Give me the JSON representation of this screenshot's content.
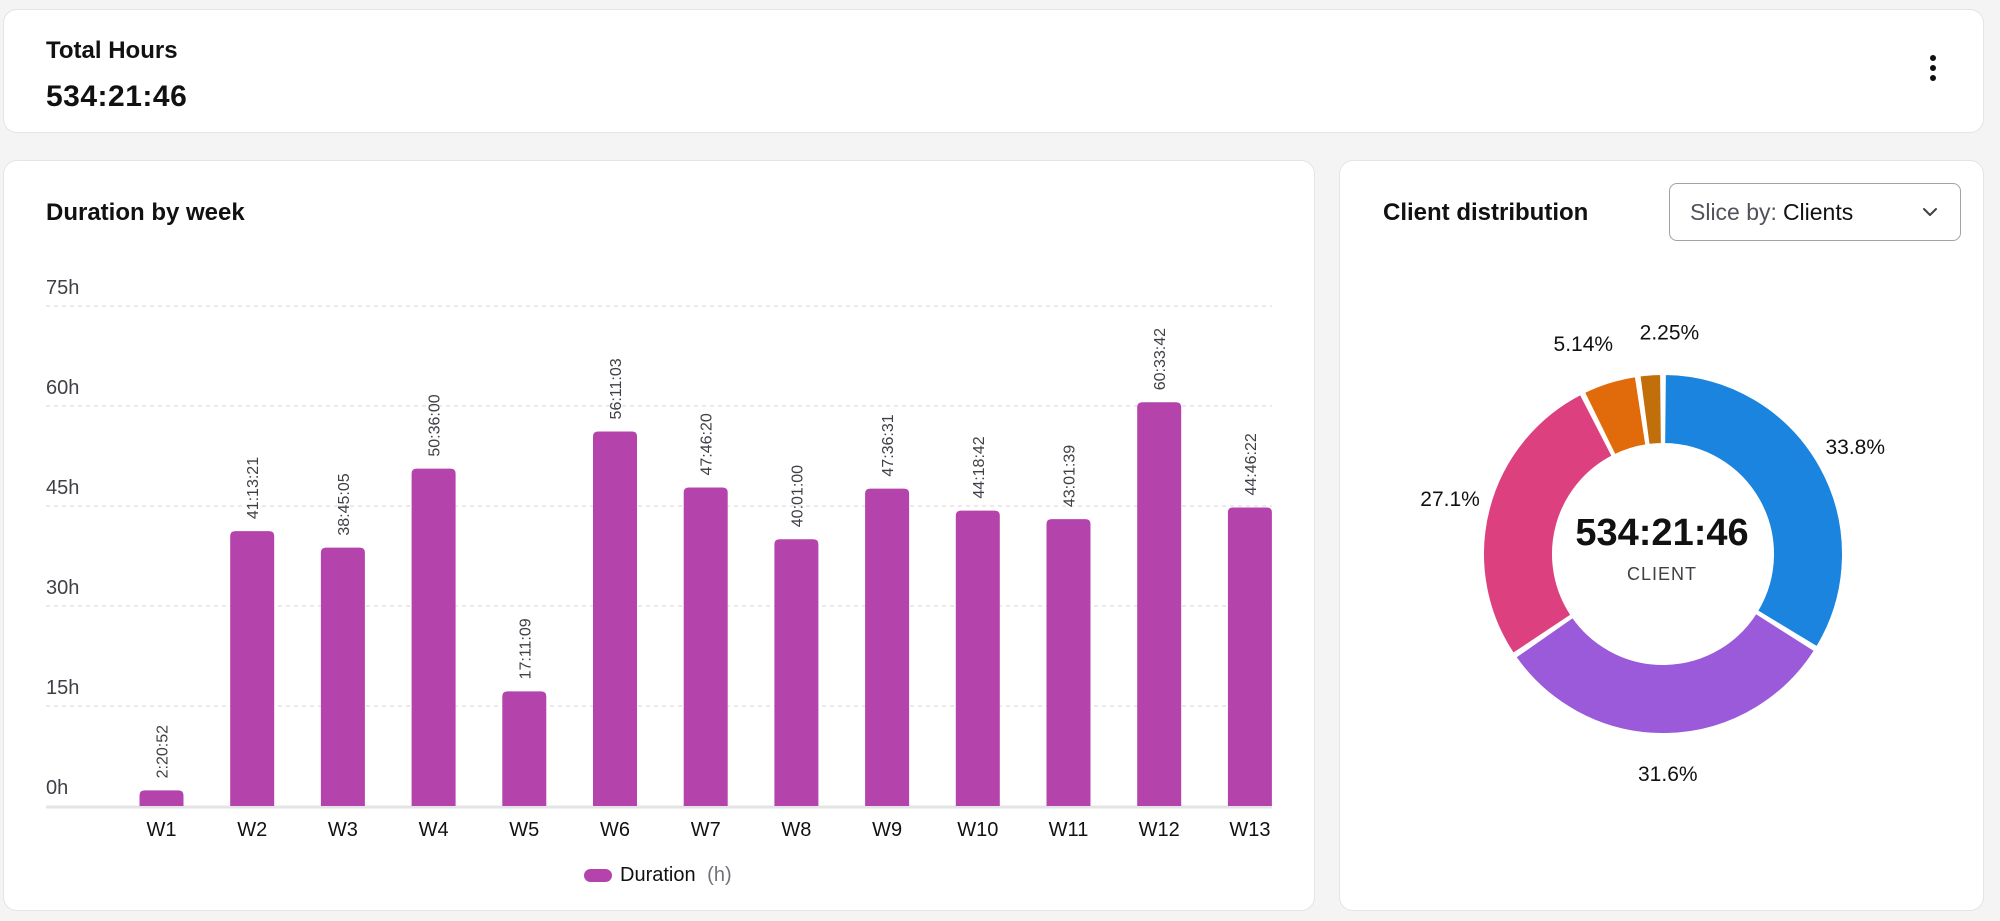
{
  "total": {
    "title": "Total Hours",
    "value": "534:21:46",
    "menu_icon": "more-vertical-icon"
  },
  "week_chart": {
    "title": "Duration by week",
    "legend_label": "Duration",
    "legend_unit": "(h)"
  },
  "client_card": {
    "title": "Client distribution",
    "slice_prefix": "Slice by:",
    "slice_value": "Clients",
    "center_value": "534:21:46",
    "center_label": "CLIENT"
  },
  "colors": {
    "bar": "#b444ac",
    "grid": "#e4e4e7",
    "axis": "#e4e4e7"
  },
  "chart_data": [
    {
      "type": "bar",
      "title": "Duration by week",
      "xlabel": "",
      "ylabel": "",
      "ylim": [
        0,
        75
      ],
      "yticks": [
        0,
        15,
        30,
        45,
        60,
        75
      ],
      "ytick_labels": [
        "0h",
        "15h",
        "30h",
        "45h",
        "60h",
        "75h"
      ],
      "categories": [
        "W1",
        "W2",
        "W3",
        "W4",
        "W5",
        "W6",
        "W7",
        "W8",
        "W9",
        "W10",
        "W11",
        "W12",
        "W13"
      ],
      "series": [
        {
          "name": "Duration",
          "unit": "(h)",
          "color": "#b444ac",
          "values": [
            2.3478,
            41.2225,
            38.7514,
            50.6,
            17.1858,
            56.1842,
            47.7722,
            40.0167,
            47.6086,
            44.3117,
            43.0275,
            60.5617,
            44.7728
          ],
          "labels": [
            "2:20:52",
            "41:13:21",
            "38:45:05",
            "50:36:00",
            "17:11:09",
            "56:11:03",
            "47:46:20",
            "40:01:00",
            "47:36:31",
            "44:18:42",
            "43:01:39",
            "60:33:42",
            "44:46:22"
          ]
        }
      ],
      "legend": "bottom-center"
    },
    {
      "type": "pie",
      "variant": "donut",
      "title": "Client distribution",
      "slices": [
        {
          "label": "33.8%",
          "value": 33.8,
          "color": "#1a84de"
        },
        {
          "label": "31.6%",
          "value": 31.6,
          "color": "#9a5ad9"
        },
        {
          "label": "27.1%",
          "value": 27.1,
          "color": "#dc407e"
        },
        {
          "label": "5.14%",
          "value": 5.14,
          "color": "#e16a0a"
        },
        {
          "label": "2.25%",
          "value": 2.25,
          "color": "#c16f0a"
        }
      ]
    }
  ]
}
